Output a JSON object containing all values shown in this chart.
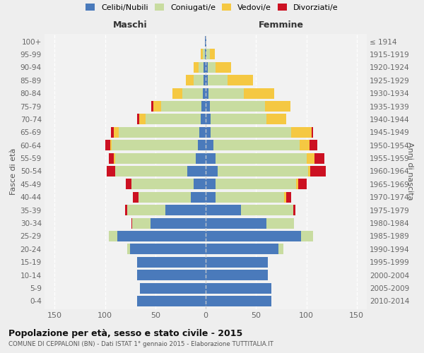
{
  "age_groups": [
    "0-4",
    "5-9",
    "10-14",
    "15-19",
    "20-24",
    "25-29",
    "30-34",
    "35-39",
    "40-44",
    "45-49",
    "50-54",
    "55-59",
    "60-64",
    "65-69",
    "70-74",
    "75-79",
    "80-84",
    "85-89",
    "90-94",
    "95-99",
    "100+"
  ],
  "birth_years": [
    "2010-2014",
    "2005-2009",
    "2000-2004",
    "1995-1999",
    "1990-1994",
    "1985-1989",
    "1980-1984",
    "1975-1979",
    "1970-1974",
    "1965-1969",
    "1960-1964",
    "1955-1959",
    "1950-1954",
    "1945-1949",
    "1940-1944",
    "1935-1939",
    "1930-1934",
    "1925-1929",
    "1920-1924",
    "1915-1919",
    "≤ 1914"
  ],
  "male": {
    "celibi": [
      68,
      65,
      68,
      68,
      75,
      88,
      55,
      40,
      15,
      12,
      18,
      10,
      8,
      6,
      5,
      4,
      3,
      2,
      2,
      1,
      1
    ],
    "coniugati": [
      0,
      0,
      0,
      0,
      3,
      8,
      18,
      38,
      52,
      62,
      72,
      80,
      85,
      80,
      55,
      40,
      20,
      10,
      5,
      2,
      0
    ],
    "vedovi": [
      0,
      0,
      0,
      0,
      0,
      0,
      0,
      0,
      0,
      0,
      0,
      1,
      2,
      5,
      6,
      8,
      10,
      8,
      5,
      2,
      0
    ],
    "divorziati": [
      0,
      0,
      0,
      0,
      0,
      0,
      1,
      2,
      5,
      5,
      8,
      5,
      5,
      3,
      2,
      2,
      0,
      0,
      0,
      0,
      0
    ]
  },
  "female": {
    "nubili": [
      65,
      65,
      62,
      62,
      72,
      95,
      60,
      35,
      10,
      10,
      12,
      10,
      8,
      5,
      5,
      4,
      3,
      2,
      2,
      1,
      1
    ],
    "coniugate": [
      0,
      0,
      0,
      0,
      5,
      12,
      28,
      52,
      68,
      80,
      90,
      90,
      85,
      80,
      55,
      55,
      35,
      20,
      8,
      3,
      0
    ],
    "vedove": [
      0,
      0,
      0,
      0,
      0,
      0,
      0,
      0,
      2,
      2,
      2,
      8,
      10,
      20,
      20,
      25,
      30,
      25,
      15,
      5,
      0
    ],
    "divorziate": [
      0,
      0,
      0,
      0,
      0,
      0,
      0,
      2,
      5,
      8,
      15,
      10,
      8,
      2,
      0,
      0,
      0,
      0,
      0,
      0,
      0
    ]
  },
  "colors": {
    "celibi": "#4a7abb",
    "coniugati": "#c8dca0",
    "vedovi": "#f5c842",
    "divorziati": "#cc1122"
  },
  "xlim": 160,
  "title": "Popolazione per età, sesso e stato civile - 2015",
  "subtitle": "COMUNE DI CEPPALONI (BN) - Dati ISTAT 1° gennaio 2015 - Elaborazione TUTTITALIA.IT",
  "legend_labels": [
    "Celibi/Nubili",
    "Coniugati/e",
    "Vedovi/e",
    "Divorziati/e"
  ],
  "xlabel_left": "Maschi",
  "xlabel_right": "Femmine",
  "ylabel_left": "Fasce di età",
  "ylabel_right": "Anni di nascita",
  "bg_color": "#eeeeee",
  "plot_bg": "#f2f2f2"
}
